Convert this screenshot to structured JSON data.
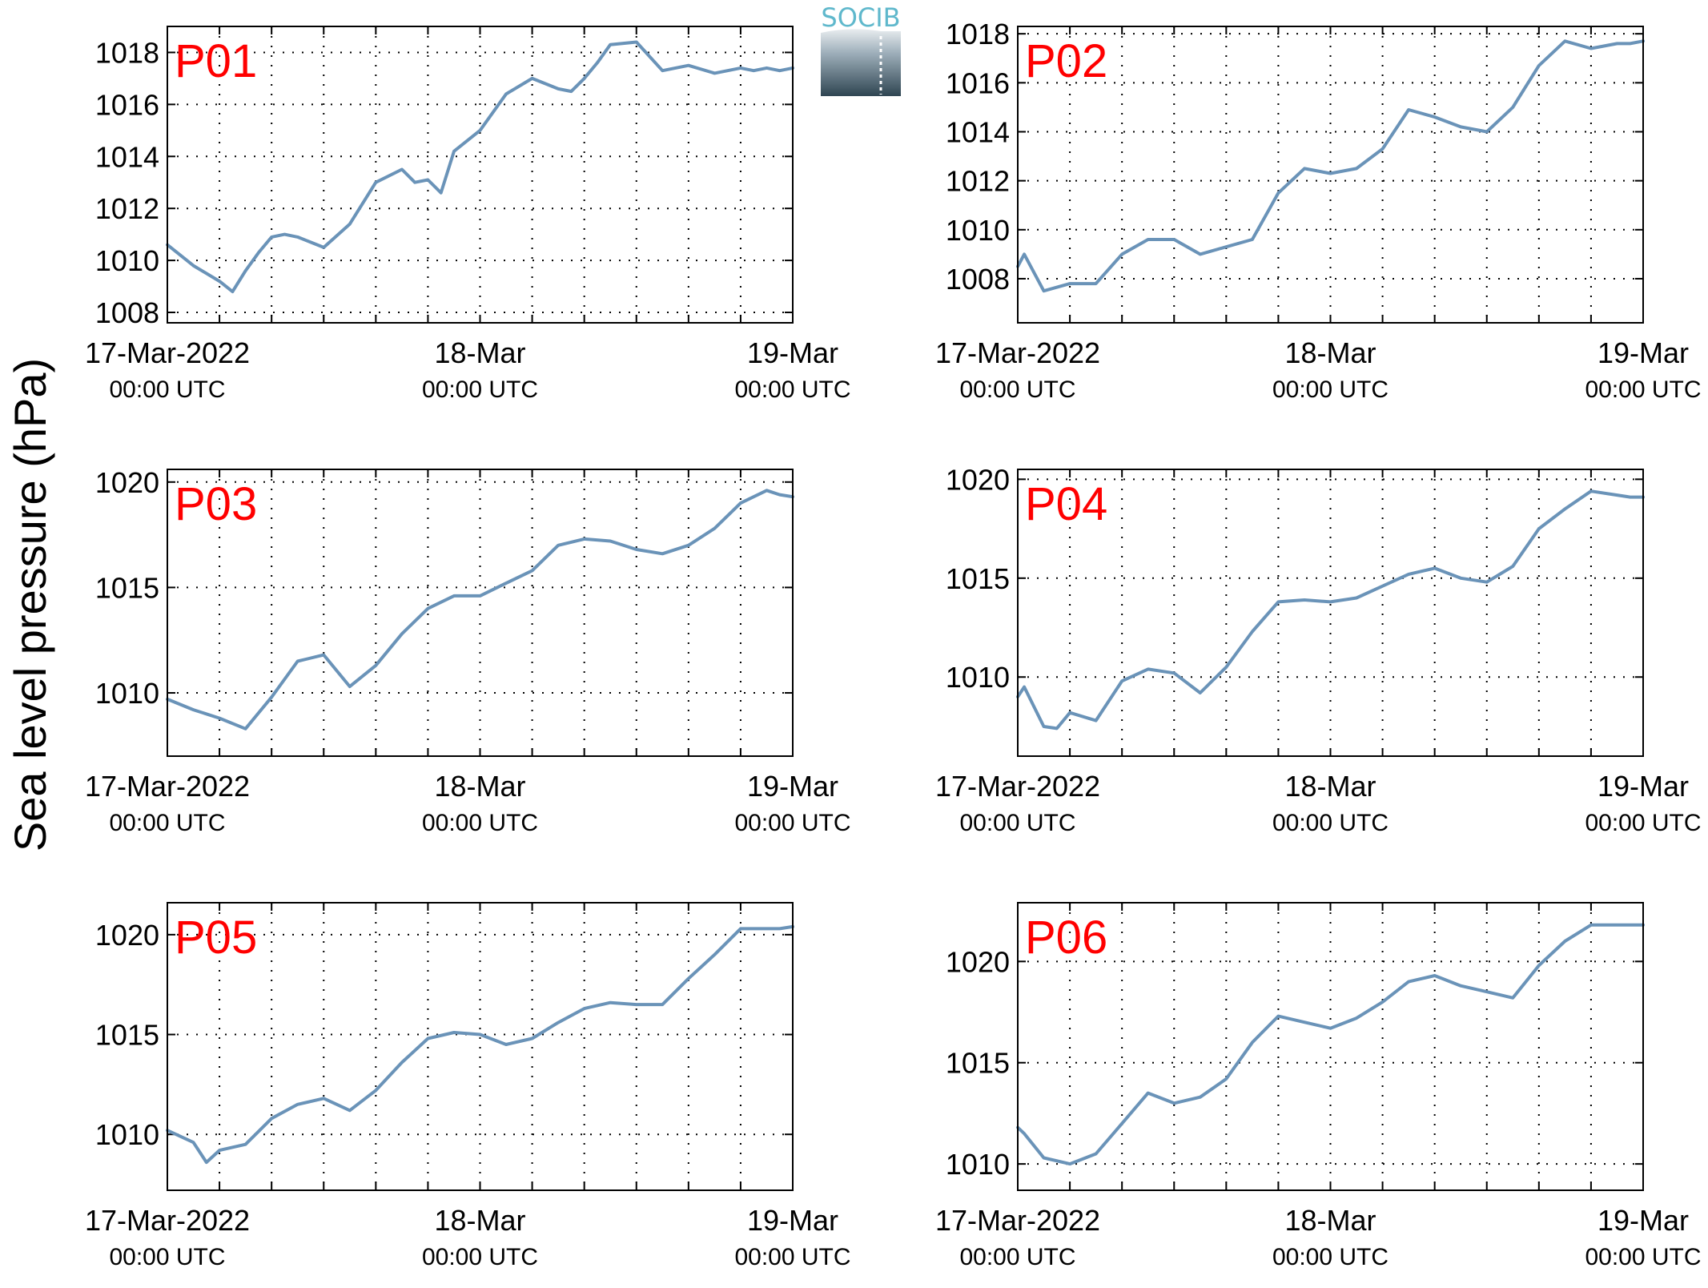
{
  "figure": {
    "ylabel": "Sea level pressure (hPa)",
    "logo_text": "SOCIB",
    "line_color": "#6a93b8",
    "label_color": "#ff0000",
    "grid": true
  },
  "chart_data": [
    {
      "type": "line",
      "title": "P01",
      "xlabel": "",
      "ylabel": "",
      "xlim": [
        "2022-03-17T00:00Z",
        "2022-03-19T00:00Z"
      ],
      "ylim": [
        1007.6,
        1019.0
      ],
      "yticks": [
        1008,
        1010,
        1012,
        1014,
        1016,
        1018
      ],
      "xticks": [
        {
          "x": "2022-03-17T00:00Z",
          "line1": "17-Mar-2022",
          "line2": "00:00 UTC"
        },
        {
          "x": "2022-03-18T00:00Z",
          "line1": "18-Mar",
          "line2": "00:00 UTC"
        },
        {
          "x": "2022-03-19T00:00Z",
          "line1": "19-Mar",
          "line2": "00:00 UTC"
        }
      ],
      "series": [
        {
          "x": [
            "2022-03-17T00:00Z",
            "2022-03-17T02:00Z",
            "2022-03-17T04:00Z",
            "2022-03-17T05:00Z",
            "2022-03-17T06:00Z",
            "2022-03-17T07:00Z",
            "2022-03-17T08:00Z",
            "2022-03-17T09:00Z",
            "2022-03-17T10:00Z",
            "2022-03-17T11:00Z",
            "2022-03-17T12:00Z",
            "2022-03-17T14:00Z",
            "2022-03-17T16:00Z",
            "2022-03-17T18:00Z",
            "2022-03-17T19:00Z",
            "2022-03-17T20:00Z",
            "2022-03-17T21:00Z",
            "2022-03-17T22:00Z",
            "2022-03-18T00:00Z",
            "2022-03-18T02:00Z",
            "2022-03-18T04:00Z",
            "2022-03-18T05:00Z",
            "2022-03-18T06:00Z",
            "2022-03-18T07:00Z",
            "2022-03-18T08:00Z",
            "2022-03-18T09:00Z",
            "2022-03-18T10:00Z",
            "2022-03-18T12:00Z",
            "2022-03-18T14:00Z",
            "2022-03-18T16:00Z",
            "2022-03-18T18:00Z",
            "2022-03-18T20:00Z",
            "2022-03-18T21:00Z",
            "2022-03-18T22:00Z",
            "2022-03-18T23:00Z",
            "2022-03-19T00:00Z"
          ],
          "y": [
            1010.6,
            1009.8,
            1009.2,
            1008.8,
            1009.6,
            1010.3,
            1010.9,
            1011.0,
            1010.9,
            1010.7,
            1010.5,
            1011.4,
            1013.0,
            1013.5,
            1013.0,
            1013.1,
            1012.6,
            1014.2,
            1015.0,
            1016.4,
            1017.0,
            1016.8,
            1016.6,
            1016.5,
            1017.0,
            1017.6,
            1018.3,
            1018.4,
            1017.3,
            1017.5,
            1017.2,
            1017.4,
            1017.3,
            1017.4,
            1017.3,
            1017.4
          ]
        }
      ]
    },
    {
      "type": "line",
      "title": "P02",
      "xlabel": "",
      "ylabel": "",
      "xlim": [
        "2022-03-17T00:00Z",
        "2022-03-19T00:00Z"
      ],
      "ylim": [
        1006.2,
        1018.3
      ],
      "yticks": [
        1008,
        1010,
        1012,
        1014,
        1016,
        1018
      ],
      "xticks": [
        {
          "x": "2022-03-17T00:00Z",
          "line1": "17-Mar-2022",
          "line2": "00:00 UTC"
        },
        {
          "x": "2022-03-18T00:00Z",
          "line1": "18-Mar",
          "line2": "00:00 UTC"
        },
        {
          "x": "2022-03-19T00:00Z",
          "line1": "19-Mar",
          "line2": "00:00 UTC"
        }
      ],
      "series": [
        {
          "x": [
            "2022-03-17T00:00Z",
            "2022-03-17T00:30Z",
            "2022-03-17T02:00Z",
            "2022-03-17T04:00Z",
            "2022-03-17T06:00Z",
            "2022-03-17T08:00Z",
            "2022-03-17T10:00Z",
            "2022-03-17T12:00Z",
            "2022-03-17T14:00Z",
            "2022-03-17T16:00Z",
            "2022-03-17T18:00Z",
            "2022-03-17T20:00Z",
            "2022-03-17T22:00Z",
            "2022-03-18T00:00Z",
            "2022-03-18T02:00Z",
            "2022-03-18T04:00Z",
            "2022-03-18T06:00Z",
            "2022-03-18T08:00Z",
            "2022-03-18T10:00Z",
            "2022-03-18T12:00Z",
            "2022-03-18T14:00Z",
            "2022-03-18T16:00Z",
            "2022-03-18T18:00Z",
            "2022-03-18T20:00Z",
            "2022-03-18T22:00Z",
            "2022-03-18T23:00Z",
            "2022-03-19T00:00Z"
          ],
          "y": [
            1008.5,
            1009.0,
            1007.5,
            1007.8,
            1007.8,
            1009.0,
            1009.6,
            1009.6,
            1009.0,
            1009.3,
            1009.6,
            1011.5,
            1012.5,
            1012.3,
            1012.5,
            1013.3,
            1014.9,
            1014.6,
            1014.2,
            1014.0,
            1015.0,
            1016.7,
            1017.7,
            1017.4,
            1017.6,
            1017.6,
            1017.7
          ]
        }
      ]
    },
    {
      "type": "line",
      "title": "P03",
      "xlabel": "",
      "ylabel": "",
      "xlim": [
        "2022-03-17T00:00Z",
        "2022-03-19T00:00Z"
      ],
      "ylim": [
        1007.0,
        1020.6
      ],
      "yticks": [
        1010,
        1015,
        1020
      ],
      "xticks": [
        {
          "x": "2022-03-17T00:00Z",
          "line1": "17-Mar-2022",
          "line2": "00:00 UTC"
        },
        {
          "x": "2022-03-18T00:00Z",
          "line1": "18-Mar",
          "line2": "00:00 UTC"
        },
        {
          "x": "2022-03-19T00:00Z",
          "line1": "19-Mar",
          "line2": "00:00 UTC"
        }
      ],
      "series": [
        {
          "x": [
            "2022-03-17T00:00Z",
            "2022-03-17T02:00Z",
            "2022-03-17T04:00Z",
            "2022-03-17T06:00Z",
            "2022-03-17T08:00Z",
            "2022-03-17T10:00Z",
            "2022-03-17T12:00Z",
            "2022-03-17T14:00Z",
            "2022-03-17T16:00Z",
            "2022-03-17T18:00Z",
            "2022-03-17T20:00Z",
            "2022-03-17T22:00Z",
            "2022-03-18T00:00Z",
            "2022-03-18T02:00Z",
            "2022-03-18T04:00Z",
            "2022-03-18T06:00Z",
            "2022-03-18T08:00Z",
            "2022-03-18T10:00Z",
            "2022-03-18T12:00Z",
            "2022-03-18T14:00Z",
            "2022-03-18T16:00Z",
            "2022-03-18T18:00Z",
            "2022-03-18T20:00Z",
            "2022-03-18T22:00Z",
            "2022-03-18T23:00Z",
            "2022-03-19T00:00Z"
          ],
          "y": [
            1009.7,
            1009.2,
            1008.8,
            1008.3,
            1009.8,
            1011.5,
            1011.8,
            1010.3,
            1011.3,
            1012.8,
            1014.0,
            1014.6,
            1014.6,
            1015.2,
            1015.8,
            1017.0,
            1017.3,
            1017.2,
            1016.8,
            1016.6,
            1017.0,
            1017.8,
            1019.0,
            1019.6,
            1019.4,
            1019.3
          ]
        }
      ]
    },
    {
      "type": "line",
      "title": "P04",
      "xlabel": "",
      "ylabel": "",
      "xlim": [
        "2022-03-17T00:00Z",
        "2022-03-19T00:00Z"
      ],
      "ylim": [
        1006.0,
        1020.5
      ],
      "yticks": [
        1010,
        1015,
        1020
      ],
      "xticks": [
        {
          "x": "2022-03-17T00:00Z",
          "line1": "17-Mar-2022",
          "line2": "00:00 UTC"
        },
        {
          "x": "2022-03-18T00:00Z",
          "line1": "18-Mar",
          "line2": "00:00 UTC"
        },
        {
          "x": "2022-03-19T00:00Z",
          "line1": "19-Mar",
          "line2": "00:00 UTC"
        }
      ],
      "series": [
        {
          "x": [
            "2022-03-17T00:00Z",
            "2022-03-17T00:30Z",
            "2022-03-17T02:00Z",
            "2022-03-17T03:00Z",
            "2022-03-17T04:00Z",
            "2022-03-17T06:00Z",
            "2022-03-17T08:00Z",
            "2022-03-17T10:00Z",
            "2022-03-17T12:00Z",
            "2022-03-17T14:00Z",
            "2022-03-17T16:00Z",
            "2022-03-17T18:00Z",
            "2022-03-17T20:00Z",
            "2022-03-17T22:00Z",
            "2022-03-18T00:00Z",
            "2022-03-18T02:00Z",
            "2022-03-18T04:00Z",
            "2022-03-18T06:00Z",
            "2022-03-18T08:00Z",
            "2022-03-18T10:00Z",
            "2022-03-18T12:00Z",
            "2022-03-18T14:00Z",
            "2022-03-18T16:00Z",
            "2022-03-18T18:00Z",
            "2022-03-18T20:00Z",
            "2022-03-18T22:00Z",
            "2022-03-18T23:00Z",
            "2022-03-19T00:00Z"
          ],
          "y": [
            1009.0,
            1009.5,
            1007.5,
            1007.4,
            1008.2,
            1007.8,
            1009.8,
            1010.4,
            1010.2,
            1009.2,
            1010.5,
            1012.3,
            1013.8,
            1013.9,
            1013.8,
            1014.0,
            1014.6,
            1015.2,
            1015.5,
            1015.0,
            1014.8,
            1015.6,
            1017.5,
            1018.5,
            1019.4,
            1019.2,
            1019.1,
            1019.1
          ]
        }
      ]
    },
    {
      "type": "line",
      "title": "P05",
      "xlabel": "",
      "ylabel": "",
      "xlim": [
        "2022-03-17T00:00Z",
        "2022-03-19T00:00Z"
      ],
      "ylim": [
        1007.2,
        1021.6
      ],
      "yticks": [
        1010,
        1015,
        1020
      ],
      "xticks": [
        {
          "x": "2022-03-17T00:00Z",
          "line1": "17-Mar-2022",
          "line2": "00:00 UTC"
        },
        {
          "x": "2022-03-18T00:00Z",
          "line1": "18-Mar",
          "line2": "00:00 UTC"
        },
        {
          "x": "2022-03-19T00:00Z",
          "line1": "19-Mar",
          "line2": "00:00 UTC"
        }
      ],
      "series": [
        {
          "x": [
            "2022-03-17T00:00Z",
            "2022-03-17T02:00Z",
            "2022-03-17T03:00Z",
            "2022-03-17T04:00Z",
            "2022-03-17T06:00Z",
            "2022-03-17T08:00Z",
            "2022-03-17T10:00Z",
            "2022-03-17T12:00Z",
            "2022-03-17T14:00Z",
            "2022-03-17T16:00Z",
            "2022-03-17T18:00Z",
            "2022-03-17T20:00Z",
            "2022-03-17T22:00Z",
            "2022-03-18T00:00Z",
            "2022-03-18T02:00Z",
            "2022-03-18T04:00Z",
            "2022-03-18T06:00Z",
            "2022-03-18T08:00Z",
            "2022-03-18T10:00Z",
            "2022-03-18T12:00Z",
            "2022-03-18T14:00Z",
            "2022-03-18T16:00Z",
            "2022-03-18T18:00Z",
            "2022-03-18T20:00Z",
            "2022-03-18T22:00Z",
            "2022-03-18T23:00Z",
            "2022-03-19T00:00Z"
          ],
          "y": [
            1010.2,
            1009.6,
            1008.6,
            1009.2,
            1009.5,
            1010.8,
            1011.5,
            1011.8,
            1011.2,
            1012.2,
            1013.6,
            1014.8,
            1015.1,
            1015.0,
            1014.5,
            1014.8,
            1015.6,
            1016.3,
            1016.6,
            1016.5,
            1016.5,
            1017.8,
            1019.0,
            1020.3,
            1020.3,
            1020.3,
            1020.4
          ]
        }
      ]
    },
    {
      "type": "line",
      "title": "P06",
      "xlabel": "",
      "ylabel": "",
      "xlim": [
        "2022-03-17T00:00Z",
        "2022-03-19T00:00Z"
      ],
      "ylim": [
        1008.7,
        1022.9
      ],
      "yticks": [
        1010,
        1015,
        1020
      ],
      "xticks": [
        {
          "x": "2022-03-17T00:00Z",
          "line1": "17-Mar-2022",
          "line2": "00:00 UTC"
        },
        {
          "x": "2022-03-18T00:00Z",
          "line1": "18-Mar",
          "line2": "00:00 UTC"
        },
        {
          "x": "2022-03-19T00:00Z",
          "line1": "19-Mar",
          "line2": "00:00 UTC"
        }
      ],
      "series": [
        {
          "x": [
            "2022-03-17T00:00Z",
            "2022-03-17T00:30Z",
            "2022-03-17T02:00Z",
            "2022-03-17T04:00Z",
            "2022-03-17T06:00Z",
            "2022-03-17T08:00Z",
            "2022-03-17T10:00Z",
            "2022-03-17T12:00Z",
            "2022-03-17T14:00Z",
            "2022-03-17T16:00Z",
            "2022-03-17T18:00Z",
            "2022-03-17T20:00Z",
            "2022-03-17T22:00Z",
            "2022-03-18T00:00Z",
            "2022-03-18T02:00Z",
            "2022-03-18T04:00Z",
            "2022-03-18T06:00Z",
            "2022-03-18T08:00Z",
            "2022-03-18T10:00Z",
            "2022-03-18T12:00Z",
            "2022-03-18T14:00Z",
            "2022-03-18T16:00Z",
            "2022-03-18T18:00Z",
            "2022-03-18T20:00Z",
            "2022-03-18T22:00Z",
            "2022-03-18T23:00Z",
            "2022-03-19T00:00Z"
          ],
          "y": [
            1011.8,
            1011.5,
            1010.3,
            1010.0,
            1010.5,
            1012.0,
            1013.5,
            1013.0,
            1013.3,
            1014.2,
            1016.0,
            1017.3,
            1017.0,
            1016.7,
            1017.2,
            1018.0,
            1019.0,
            1019.3,
            1018.8,
            1018.5,
            1018.2,
            1019.8,
            1021.0,
            1021.8,
            1021.8,
            1021.8,
            1021.8
          ]
        }
      ]
    }
  ]
}
